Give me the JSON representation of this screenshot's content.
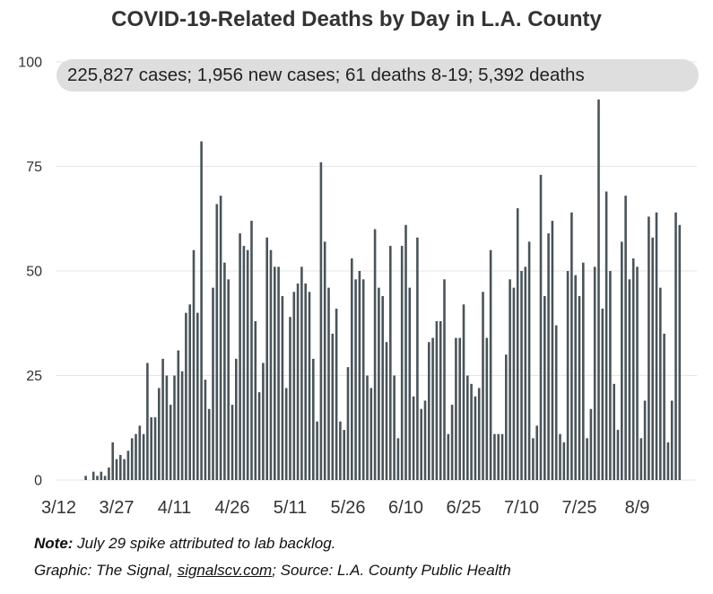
{
  "chart_data": {
    "type": "bar",
    "title": "COVID-19-Related Deaths by Day in L.A. County",
    "annotation": "225,827 cases; 1,956 new cases; 61 deaths 8-19; 5,392 deaths",
    "xlabel": "",
    "ylabel": "",
    "ylim": [
      0,
      100
    ],
    "yticks": [
      0,
      25,
      50,
      75,
      100
    ],
    "xticks": [
      "3/12",
      "3/27",
      "4/11",
      "4/26",
      "5/11",
      "5/26",
      "6/10",
      "6/25",
      "7/10",
      "7/25",
      "8/9"
    ],
    "grid": true,
    "bar_color": "#4a5459",
    "x_start": "3/12",
    "x_end": "8/19",
    "values": [
      0,
      0,
      0,
      0,
      0,
      0,
      0,
      1,
      0,
      2,
      1,
      2,
      1,
      3,
      9,
      5,
      6,
      5,
      7,
      10,
      11,
      13,
      11,
      28,
      15,
      15,
      22,
      29,
      25,
      18,
      25,
      31,
      26,
      40,
      42,
      55,
      40,
      81,
      24,
      17,
      46,
      66,
      68,
      52,
      48,
      18,
      29,
      59,
      56,
      55,
      62,
      38,
      21,
      28,
      58,
      55,
      51,
      51,
      44,
      22,
      39,
      45,
      47,
      51,
      47,
      45,
      29,
      14,
      76,
      57,
      46,
      35,
      41,
      14,
      12,
      27,
      53,
      48,
      50,
      48,
      25,
      22,
      60,
      46,
      44,
      33,
      56,
      25,
      10,
      56,
      61,
      46,
      20,
      58,
      17,
      19,
      33,
      34,
      38,
      38,
      48,
      11,
      18,
      34,
      34,
      42,
      25,
      23,
      20,
      22,
      45,
      34,
      55,
      11,
      11,
      11,
      30,
      48,
      46,
      65,
      50,
      51,
      57,
      10,
      13,
      73,
      44,
      59,
      62,
      37,
      11,
      9,
      50,
      64,
      49,
      44,
      52,
      10,
      17,
      51,
      91,
      41,
      69,
      50,
      23,
      12,
      57,
      68,
      48,
      53,
      51,
      10,
      19,
      63,
      58,
      64,
      46,
      35,
      9,
      19,
      64,
      61
    ]
  },
  "footer": {
    "note_label": "Note:",
    "note_text": " July 29 spike attributed to lab backlog.",
    "credit_prefix": "Graphic: The Signal, ",
    "credit_link": "signalscv.com",
    "credit_suffix": "; Source: L.A. County Public Health"
  }
}
